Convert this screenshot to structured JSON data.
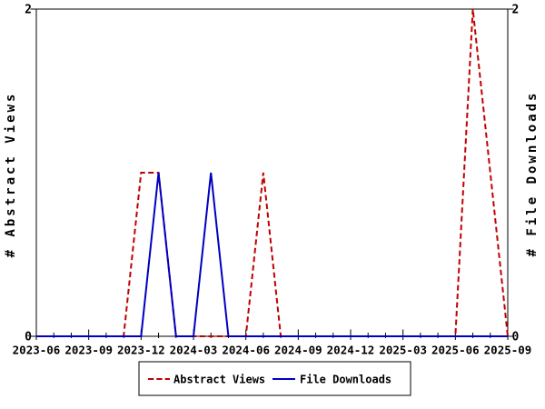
{
  "chart_data": {
    "type": "line",
    "x": [
      "2023-06",
      "2023-07",
      "2023-08",
      "2023-09",
      "2023-10",
      "2023-11",
      "2023-12",
      "2024-01",
      "2024-02",
      "2024-03",
      "2024-04",
      "2024-05",
      "2024-06",
      "2024-07",
      "2024-08",
      "2024-09",
      "2024-10",
      "2024-11",
      "2024-12",
      "2025-01",
      "2025-02",
      "2025-03",
      "2025-04",
      "2025-05",
      "2025-06",
      "2025-07",
      "2025-08",
      "2025-09"
    ],
    "x_major_ticks": [
      "2023-06",
      "2023-09",
      "2023-12",
      "2024-03",
      "2024-06",
      "2024-09",
      "2024-12",
      "2025-03",
      "2025-06",
      "2025-09"
    ],
    "series": [
      {
        "name": "Abstract Views",
        "color": "#c00000",
        "style": "dashed",
        "values": [
          0,
          0,
          0,
          0,
          0,
          0,
          1,
          1,
          0,
          0,
          0,
          0,
          0,
          1,
          0,
          0,
          0,
          0,
          0,
          0,
          0,
          0,
          0,
          0,
          0,
          2,
          1,
          0
        ]
      },
      {
        "name": "File Downloads",
        "color": "#0000c0",
        "style": "solid",
        "values": [
          0,
          0,
          0,
          0,
          0,
          0,
          0,
          1,
          0,
          0,
          1,
          0,
          0,
          0,
          0,
          0,
          0,
          0,
          0,
          0,
          0,
          0,
          0,
          0,
          0,
          0,
          0,
          0
        ]
      }
    ],
    "ylabel_left": "# Abstract Views",
    "ylabel_right": "# File Downloads",
    "ylim": [
      0,
      2
    ],
    "yticks": [
      "0",
      "2"
    ],
    "legend_position": "bottom-center",
    "grid": false,
    "background_color": "#ffffff",
    "axis_color": "#000000"
  }
}
